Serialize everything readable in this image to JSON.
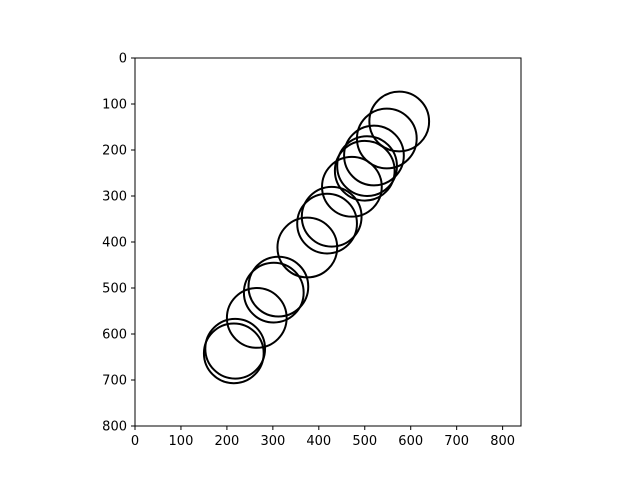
{
  "chart_data": {
    "type": "scatter",
    "marker": "hollow-circle",
    "marker_color": "#000000",
    "title": "",
    "xlabel": "",
    "ylabel": "",
    "xlim": [
      0,
      840
    ],
    "ylim": [
      800,
      0
    ],
    "y_inverted": true,
    "grid": false,
    "xticks": [
      0,
      100,
      200,
      300,
      400,
      500,
      600,
      700,
      800
    ],
    "yticks": [
      0,
      100,
      200,
      300,
      400,
      500,
      600,
      700,
      800
    ],
    "circle_radius": 65,
    "points": [
      {
        "x": 575,
        "y": 138
      },
      {
        "x": 548,
        "y": 175
      },
      {
        "x": 520,
        "y": 212
      },
      {
        "x": 505,
        "y": 235
      },
      {
        "x": 500,
        "y": 245
      },
      {
        "x": 472,
        "y": 280
      },
      {
        "x": 428,
        "y": 345
      },
      {
        "x": 418,
        "y": 360
      },
      {
        "x": 375,
        "y": 412
      },
      {
        "x": 312,
        "y": 497
      },
      {
        "x": 302,
        "y": 510
      },
      {
        "x": 265,
        "y": 565
      },
      {
        "x": 218,
        "y": 632
      },
      {
        "x": 215,
        "y": 642
      }
    ]
  }
}
